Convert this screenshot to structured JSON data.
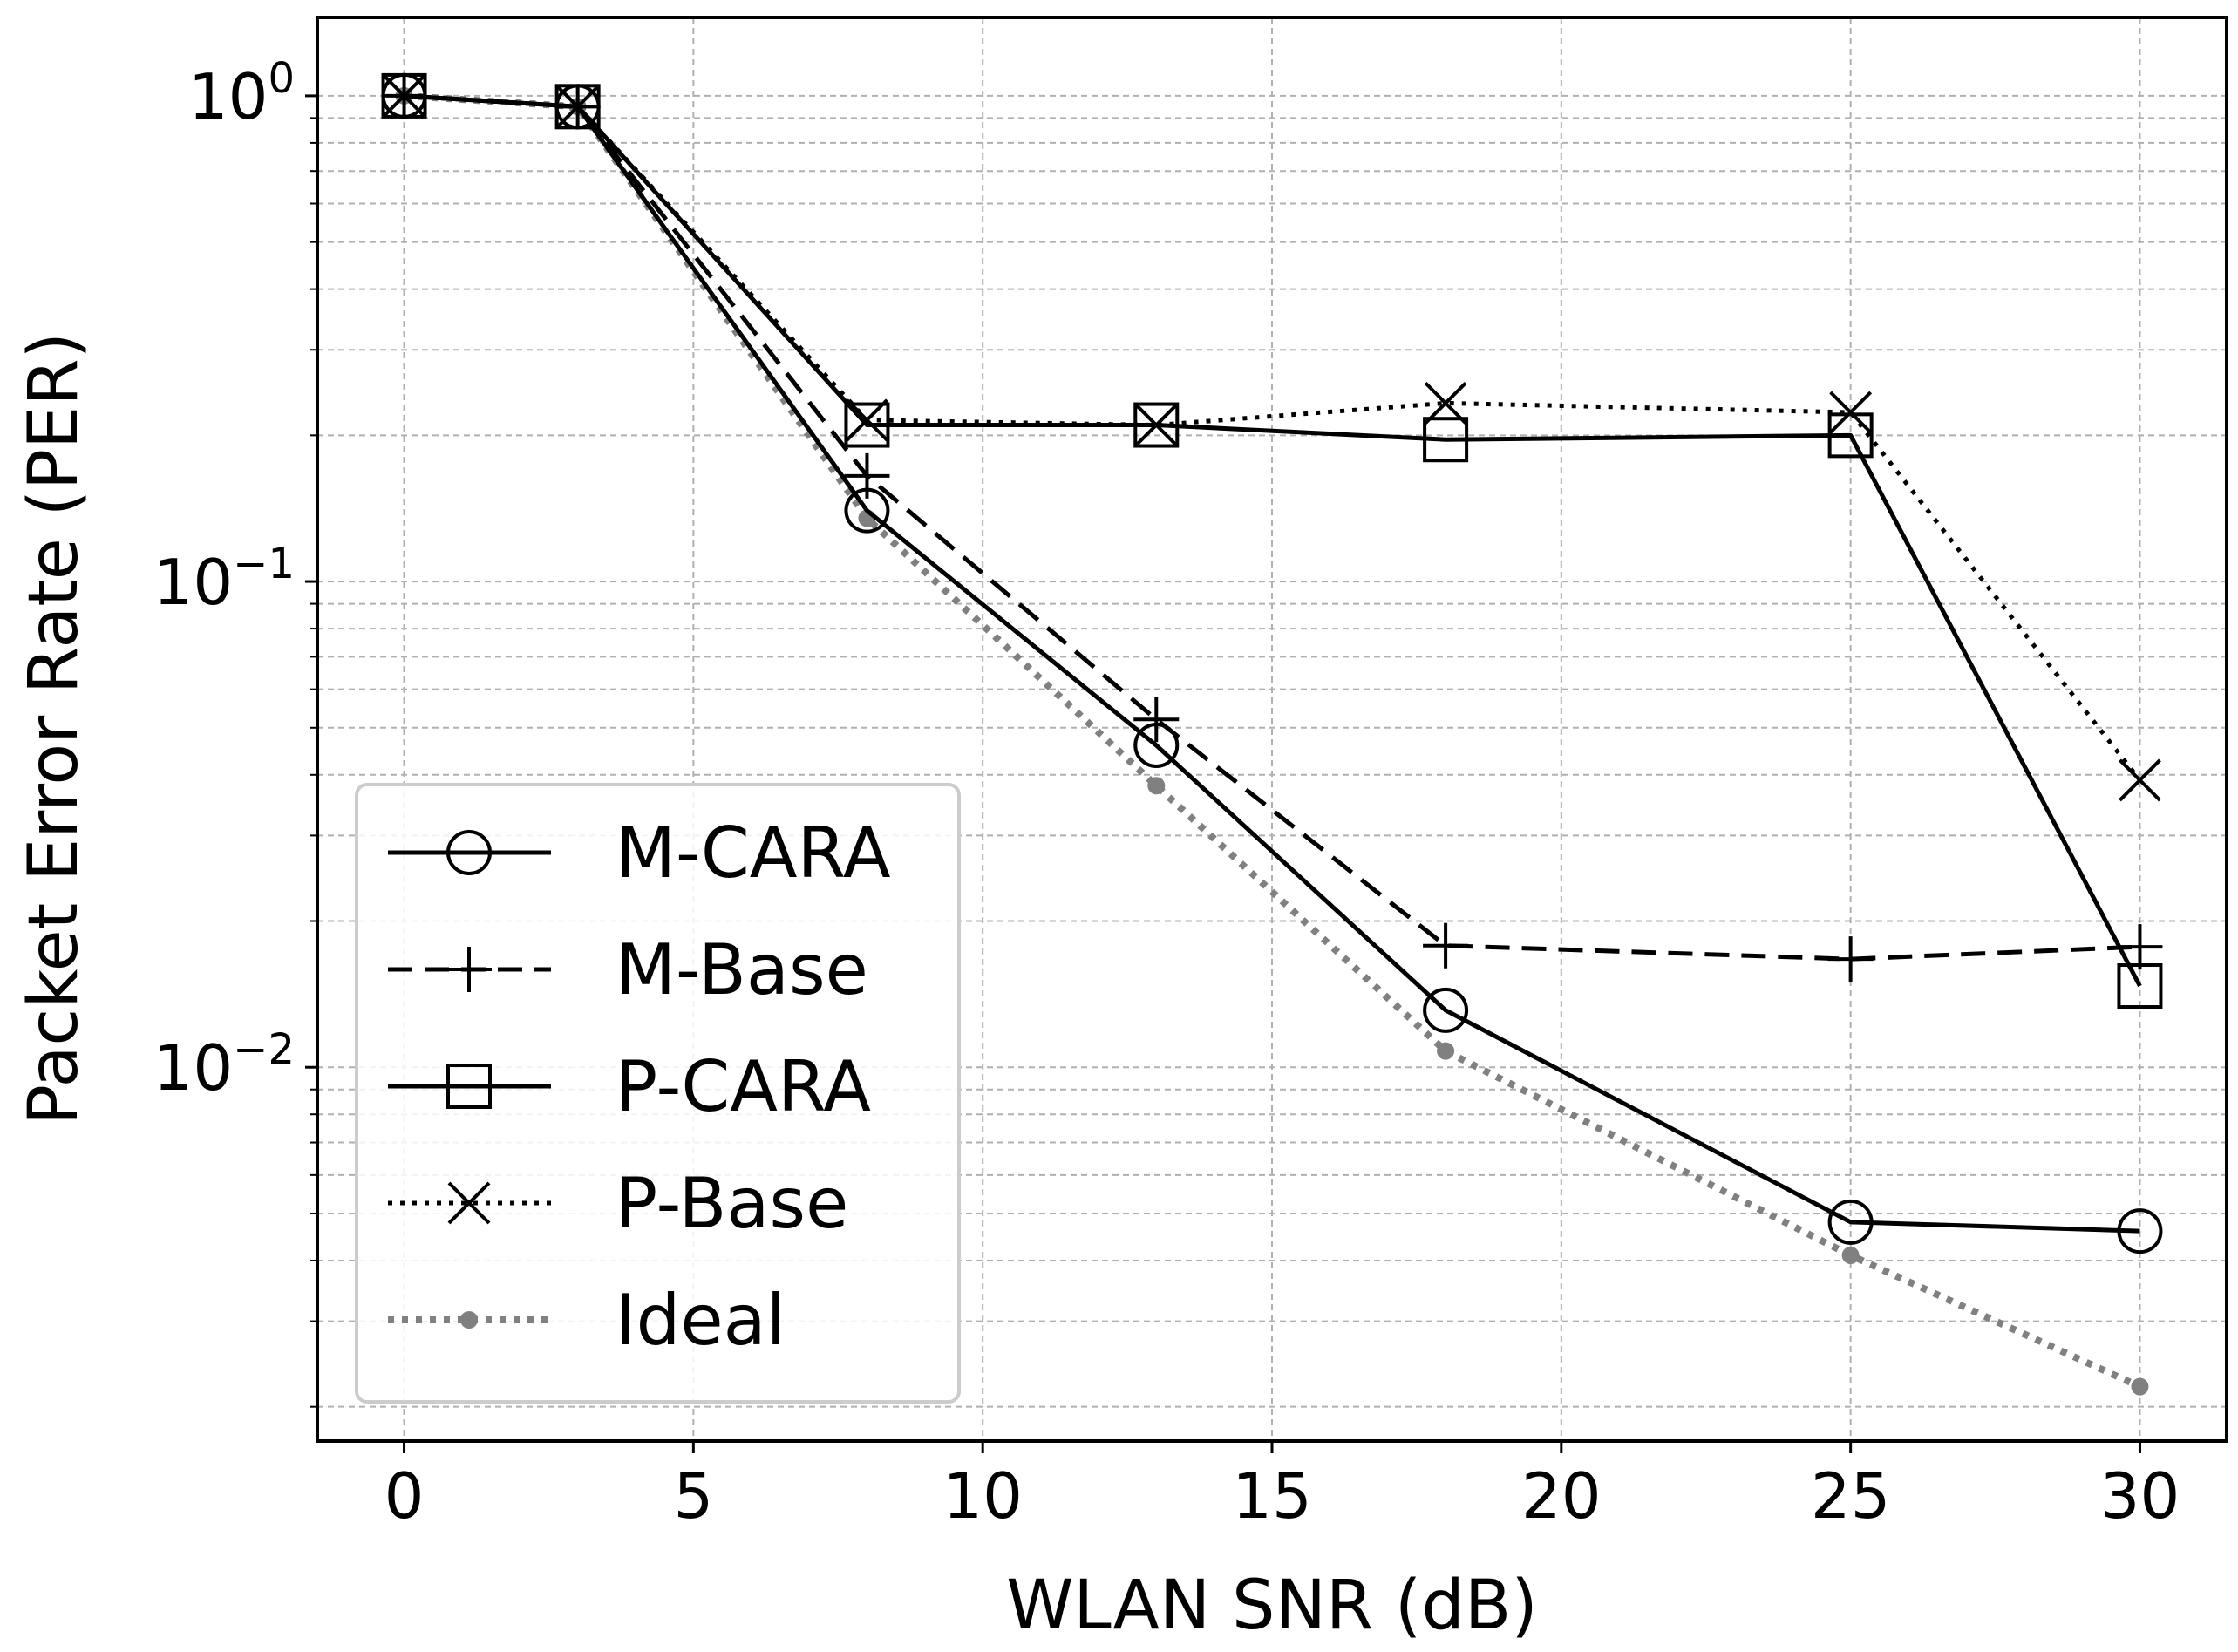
{
  "chart_data": {
    "type": "line",
    "xlabel": "WLAN SNR (dB)",
    "ylabel": "Packet Error Rate (PER)",
    "xlim": [
      -1.5,
      31.5
    ],
    "ylim": [
      0.0017,
      1.45
    ],
    "yscale": "log",
    "grid": true,
    "legend_position": "lower-left",
    "xticks": [
      0,
      5,
      10,
      15,
      20,
      25,
      30
    ],
    "yticks": [
      {
        "value": 1,
        "base": "10",
        "exp": "0"
      },
      {
        "value": 0.1,
        "base": "10",
        "exp": "−1"
      },
      {
        "value": 0.01,
        "base": "10",
        "exp": "−2"
      }
    ],
    "x": [
      0,
      3,
      8,
      13,
      18,
      25,
      30
    ],
    "series": [
      {
        "name": "M-CARA",
        "line": "solid",
        "marker": "circle",
        "color": "#000000",
        "values": [
          1.0,
          0.95,
          0.14,
          0.046,
          0.0131,
          0.0048,
          0.0046
        ]
      },
      {
        "name": "M-Base",
        "line": "dashed",
        "marker": "plus",
        "color": "#000000",
        "values": [
          1.0,
          0.95,
          0.165,
          0.052,
          0.0178,
          0.0167,
          0.0177
        ]
      },
      {
        "name": "P-CARA",
        "line": "solid",
        "marker": "square",
        "color": "#000000",
        "values": [
          1.0,
          0.95,
          0.21,
          0.21,
          0.196,
          0.2,
          0.0147
        ]
      },
      {
        "name": "P-Base",
        "line": "dotted",
        "marker": "x",
        "color": "#000000",
        "values": [
          1.0,
          0.95,
          0.215,
          0.21,
          0.233,
          0.223,
          0.039
        ]
      },
      {
        "name": "Ideal",
        "line": "dotted",
        "marker": "dot",
        "color": "#808080",
        "values": [
          1.0,
          0.95,
          0.135,
          0.038,
          0.0108,
          0.0041,
          0.0022
        ]
      }
    ]
  }
}
